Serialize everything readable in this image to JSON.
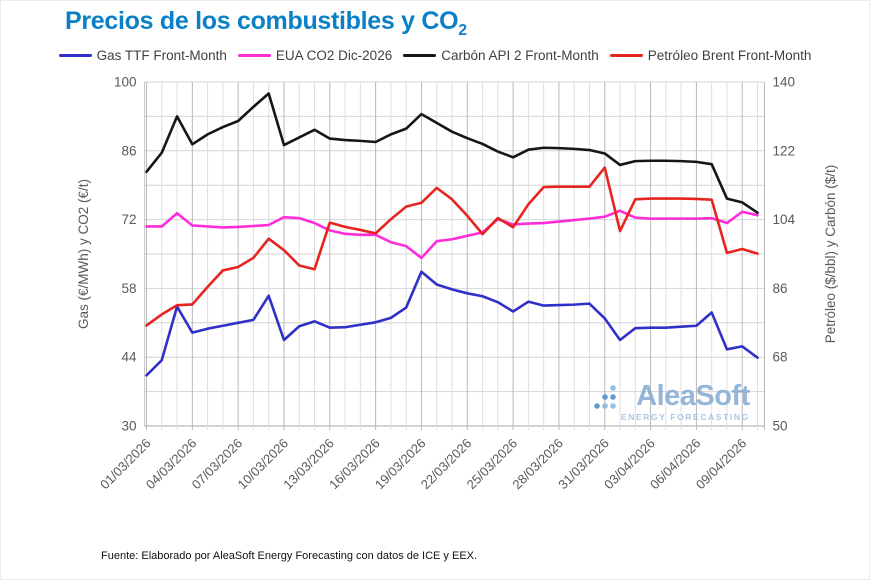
{
  "title": {
    "main": "Precios de los combustibles y CO",
    "sub": "2"
  },
  "legend": {
    "items": [
      {
        "label": "Gas TTF Front-Month",
        "color": "#3030c8"
      },
      {
        "label": "EUA CO2 Dic-2026",
        "color": "#ff2cd8"
      },
      {
        "label": "Carbón API 2 Front-Month",
        "color": "#161616"
      },
      {
        "label": "Petróleo Brent Front-Month",
        "color": "#e62420"
      }
    ]
  },
  "watermark": {
    "name": "AleaSoft",
    "tagline": "ENERGY FORECASTING"
  },
  "footer": {
    "text": "Fuente: Elaborado por AleaSoft Energy Forecasting con datos de ICE y EEX."
  },
  "chart_data": {
    "type": "line",
    "x": [
      "01/03/2026",
      "02/03/2026",
      "03/03/2026",
      "04/03/2026",
      "05/03/2026",
      "06/03/2026",
      "07/03/2026",
      "08/03/2026",
      "09/03/2026",
      "10/03/2026",
      "11/03/2026",
      "12/03/2026",
      "13/03/2026",
      "14/03/2026",
      "15/03/2026",
      "16/03/2026",
      "17/03/2026",
      "18/03/2026",
      "19/03/2026",
      "20/03/2026",
      "21/03/2026",
      "22/03/2026",
      "23/03/2026",
      "24/03/2026",
      "25/03/2026",
      "26/03/2026",
      "27/03/2026",
      "28/03/2026",
      "29/03/2026",
      "30/03/2026",
      "31/03/2026",
      "01/04/2026",
      "02/04/2026",
      "03/04/2026",
      "04/04/2026",
      "05/04/2026",
      "06/04/2026",
      "07/04/2026",
      "08/04/2026",
      "09/04/2026",
      "10/04/2026"
    ],
    "x_tick_labels": [
      "01/03/2026",
      "04/03/2026",
      "07/03/2026",
      "10/03/2026",
      "13/03/2026",
      "16/03/2026",
      "19/03/2026",
      "22/03/2026",
      "25/03/2026",
      "28/03/2026",
      "31/03/2026",
      "03/04/2026",
      "06/04/2026",
      "09/04/2026"
    ],
    "x_tick_every": 3,
    "grid": true,
    "legend_position": "top",
    "axes": {
      "left": {
        "label": "Gas (€/MWh) y CO2 (€/t)",
        "min": 30,
        "max": 100,
        "ticks": [
          100,
          86,
          72,
          58,
          44,
          30
        ],
        "minor_step": 7
      },
      "right": {
        "label": "Petróleo ($/bbl) y Carbón ($/t)",
        "min": 50,
        "max": 140,
        "ticks": [
          140,
          122,
          104,
          86,
          68,
          50
        ]
      }
    },
    "series": [
      {
        "name": "Gas TTF Front-Month",
        "axis": "left",
        "unit": "€/MWh",
        "color": "#3030c8",
        "values": [
          40.3,
          43.4,
          54.3,
          49.0,
          49.8,
          50.4,
          51.0,
          51.6,
          56.5,
          47.5,
          50.3,
          51.3,
          50.0,
          50.1,
          50.6,
          51.1,
          52.0,
          54.1,
          61.4,
          58.8,
          57.8,
          57.0,
          56.4,
          55.2,
          53.3,
          55.3,
          54.5,
          54.6,
          54.7,
          54.9,
          51.9,
          47.5,
          49.9,
          50.0,
          50.0,
          50.2,
          50.4,
          53.1,
          45.6,
          46.2,
          43.9
        ]
      },
      {
        "name": "EUA CO2 Dic-2026",
        "axis": "left",
        "unit": "€/t",
        "color": "#ff2cd8",
        "values": [
          70.6,
          70.6,
          73.3,
          70.8,
          70.6,
          70.4,
          70.5,
          70.7,
          70.9,
          72.5,
          72.3,
          71.3,
          69.8,
          69.1,
          68.9,
          68.9,
          67.4,
          66.6,
          64.2,
          67.6,
          68.0,
          68.7,
          69.4,
          72.1,
          71.0,
          71.2,
          71.3,
          71.6,
          71.9,
          72.2,
          72.6,
          73.8,
          72.4,
          72.2,
          72.2,
          72.2,
          72.2,
          72.3,
          71.3,
          73.6,
          72.9
        ]
      },
      {
        "name": "Carbón API 2 Front-Month",
        "axis": "right",
        "unit": "$/t",
        "color": "#161616",
        "values": [
          116.5,
          121.5,
          131.0,
          123.7,
          126.3,
          128.2,
          129.8,
          133.5,
          137.0,
          123.5,
          125.5,
          127.5,
          125.2,
          124.8,
          124.6,
          124.3,
          126.3,
          127.8,
          131.6,
          129.3,
          127.0,
          125.3,
          123.8,
          121.8,
          120.3,
          122.3,
          122.8,
          122.7,
          122.5,
          122.2,
          121.3,
          118.3,
          119.3,
          119.4,
          119.4,
          119.3,
          119.1,
          118.5,
          109.5,
          108.5,
          105.8
        ]
      },
      {
        "name": "Petróleo Brent Front-Month",
        "axis": "right",
        "unit": "$/bbl",
        "color": "#e62420",
        "values": [
          76.3,
          79.2,
          81.6,
          81.8,
          86.4,
          90.7,
          91.6,
          94.0,
          99.0,
          96.0,
          92.0,
          91.0,
          103.2,
          102.1,
          101.3,
          100.4,
          104.1,
          107.4,
          108.4,
          112.3,
          109.3,
          105.0,
          100.2,
          104.4,
          102.0,
          108.0,
          112.5,
          112.6,
          112.6,
          112.6,
          117.6,
          101.0,
          109.3,
          109.5,
          109.5,
          109.5,
          109.4,
          109.2,
          95.3,
          96.3,
          95.1
        ]
      }
    ]
  }
}
